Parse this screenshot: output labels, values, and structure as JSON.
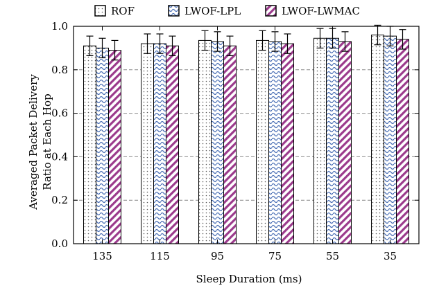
{
  "chart_data": {
    "type": "bar",
    "categories": [
      "135",
      "115",
      "95",
      "75",
      "55",
      "35"
    ],
    "series": [
      {
        "name": "ROF",
        "values": [
          0.91,
          0.92,
          0.935,
          0.935,
          0.945,
          0.96
        ],
        "errors": [
          0.045,
          0.045,
          0.045,
          0.045,
          0.045,
          0.045
        ],
        "color": "#555555",
        "pattern": "dots"
      },
      {
        "name": "LWOF-LPL",
        "values": [
          0.9,
          0.92,
          0.93,
          0.93,
          0.945,
          0.955
        ],
        "errors": [
          0.045,
          0.045,
          0.045,
          0.045,
          0.045,
          0.045
        ],
        "color": "#4a6fb5",
        "pattern": "waves"
      },
      {
        "name": "LWOF-LWMAC",
        "values": [
          0.89,
          0.91,
          0.91,
          0.92,
          0.93,
          0.94
        ],
        "errors": [
          0.045,
          0.045,
          0.045,
          0.045,
          0.045,
          0.045
        ],
        "color": "#9b3a8c",
        "pattern": "diagonal"
      }
    ],
    "xlabel": "Sleep Duration (ms)",
    "ylabel_lines": [
      "Averaged Packet Delivery",
      "Ratio at Each Hop"
    ],
    "ylim": [
      0,
      1.0
    ],
    "yticks": [
      "0.0",
      "0.2",
      "0.4",
      "0.6",
      "0.8",
      "1.0"
    ],
    "grid": "horizontal dashed",
    "legend_position": "top"
  }
}
